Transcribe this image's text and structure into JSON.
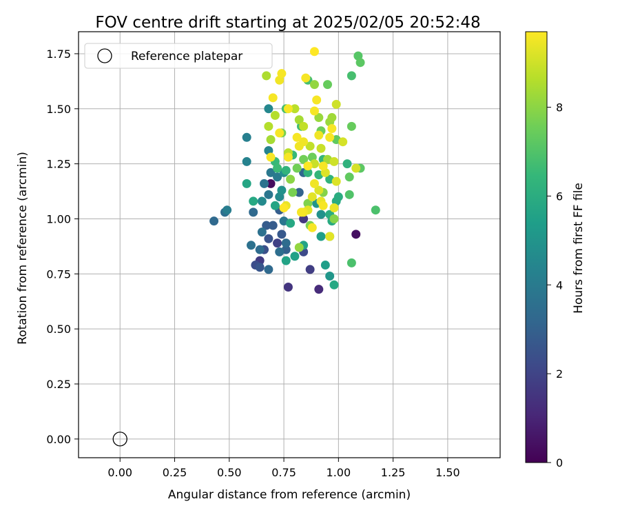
{
  "chart_data": {
    "type": "scatter",
    "title": "FOV centre drift starting at 2025/02/05 20:52:48",
    "xlabel": "Angular distance from reference (arcmin)",
    "ylabel": "Rotation from reference (arcmin)",
    "xlim": [
      -0.19,
      1.74
    ],
    "ylim": [
      -0.085,
      1.85
    ],
    "xticks": [
      0.0,
      0.25,
      0.5,
      0.75,
      1.0,
      1.25,
      1.5
    ],
    "xtick_labels": [
      "0.00",
      "0.25",
      "0.50",
      "0.75",
      "1.00",
      "1.25",
      "1.50"
    ],
    "yticks": [
      0.0,
      0.25,
      0.5,
      0.75,
      1.0,
      1.25,
      1.5,
      1.75
    ],
    "ytick_labels": [
      "0.00",
      "0.25",
      "0.50",
      "0.75",
      "1.00",
      "1.25",
      "1.50",
      "1.75"
    ],
    "grid": true,
    "legend": {
      "placement": "top-left",
      "entries": [
        "Reference platepar"
      ]
    },
    "reference_point": {
      "x": 0.0,
      "y": 0.0
    },
    "colorbar": {
      "label": "Hours from first FF file",
      "min": 0,
      "max": 9.7,
      "ticks": [
        0,
        2,
        4,
        6,
        8
      ],
      "tick_labels": [
        "0",
        "2",
        "4",
        "6",
        "8"
      ],
      "colormap": "viridis"
    },
    "colormap_stops": [
      "#440154",
      "#482878",
      "#3e4989",
      "#31688e",
      "#26828e",
      "#1f9e89",
      "#35b779",
      "#6ece58",
      "#b5de2b",
      "#fde725"
    ],
    "points": [
      [
        0.69,
        1.16,
        0.3
      ],
      [
        1.08,
        0.93,
        0.4
      ],
      [
        0.91,
        0.68,
        1.2
      ],
      [
        0.77,
        0.69,
        1.5
      ],
      [
        0.64,
        0.81,
        1.7
      ],
      [
        0.87,
        0.77,
        1.8
      ],
      [
        0.72,
        0.89,
        1.9
      ],
      [
        0.84,
        1.0,
        1.6
      ],
      [
        0.84,
        0.85,
        2.2
      ],
      [
        0.62,
        0.79,
        2.3
      ],
      [
        0.66,
        0.86,
        2.4
      ],
      [
        0.68,
        0.91,
        2.5
      ],
      [
        0.64,
        0.78,
        2.6
      ],
      [
        0.74,
        0.93,
        2.7
      ],
      [
        0.67,
        0.97,
        2.8
      ],
      [
        0.7,
        0.97,
        2.8
      ],
      [
        0.73,
        1.04,
        2.9
      ],
      [
        0.76,
        0.86,
        3.0
      ],
      [
        0.82,
        1.12,
        3.1
      ],
      [
        0.84,
        1.21,
        3.2
      ],
      [
        0.43,
        0.99,
        3.3
      ],
      [
        0.61,
        1.03,
        3.3
      ],
      [
        0.48,
        1.03,
        3.5
      ],
      [
        0.76,
        0.89,
        3.4
      ],
      [
        0.68,
        0.77,
        3.3
      ],
      [
        0.6,
        0.88,
        3.6
      ],
      [
        0.65,
        0.94,
        3.6
      ],
      [
        0.73,
        0.85,
        3.5
      ],
      [
        0.64,
        0.86,
        3.4
      ],
      [
        0.66,
        1.16,
        3.7
      ],
      [
        0.68,
        1.11,
        3.8
      ],
      [
        0.75,
        0.99,
        3.8
      ],
      [
        0.69,
        1.21,
        3.9
      ],
      [
        0.72,
        1.19,
        4.0
      ],
      [
        0.49,
        1.04,
        4.1
      ],
      [
        0.58,
        1.37,
        4.2
      ],
      [
        0.58,
        1.26,
        4.3
      ],
      [
        0.68,
        1.31,
        4.4
      ],
      [
        0.68,
        1.5,
        4.5
      ],
      [
        0.65,
        1.08,
        4.6
      ],
      [
        0.73,
        1.1,
        4.6
      ],
      [
        0.75,
        1.21,
        4.8
      ],
      [
        0.74,
        1.13,
        4.9
      ],
      [
        0.92,
        1.02,
        4.9
      ],
      [
        0.9,
        1.07,
        5.0
      ],
      [
        0.96,
        0.74,
        5.1
      ],
      [
        0.94,
        0.79,
        5.4
      ],
      [
        0.92,
        0.92,
        5.4
      ],
      [
        0.96,
        0.92,
        5.3
      ],
      [
        0.8,
        0.83,
        5.5
      ],
      [
        0.76,
        0.81,
        5.6
      ],
      [
        0.84,
        0.88,
        5.6
      ],
      [
        0.58,
        1.16,
        5.7
      ],
      [
        0.61,
        1.08,
        5.8
      ],
      [
        0.71,
        1.06,
        5.7
      ],
      [
        0.78,
        0.98,
        5.8
      ],
      [
        0.98,
        0.7,
        5.8
      ],
      [
        0.97,
        0.99,
        5.9
      ],
      [
        0.99,
        1.08,
        5.9
      ],
      [
        1.0,
        1.1,
        6.0
      ],
      [
        0.96,
        1.02,
        6.0
      ],
      [
        1.04,
        1.25,
        6.2
      ],
      [
        0.96,
        1.18,
        6.3
      ],
      [
        0.91,
        1.2,
        6.4
      ],
      [
        0.93,
        1.27,
        6.4
      ],
      [
        0.86,
        1.21,
        6.3
      ],
      [
        0.76,
        1.22,
        6.3
      ],
      [
        0.79,
        1.29,
        6.5
      ],
      [
        0.71,
        1.26,
        6.5
      ],
      [
        0.72,
        1.23,
        6.6
      ],
      [
        0.83,
        1.42,
        6.7
      ],
      [
        0.86,
        1.63,
        6.8
      ],
      [
        0.76,
        1.5,
        6.8
      ],
      [
        1.06,
        1.65,
        6.8
      ],
      [
        1.06,
        0.8,
        6.9
      ],
      [
        1.17,
        1.04,
        6.9
      ],
      [
        1.05,
        1.11,
        7.0
      ],
      [
        1.09,
        1.74,
        7.1
      ],
      [
        1.1,
        1.71,
        7.2
      ],
      [
        1.1,
        1.23,
        7.2
      ],
      [
        1.05,
        1.19,
        7.3
      ],
      [
        1.06,
        1.42,
        7.4
      ],
      [
        0.99,
        1.36,
        7.3
      ],
      [
        0.95,
        1.61,
        7.4
      ],
      [
        0.92,
        1.4,
        7.5
      ],
      [
        0.88,
        1.28,
        7.5
      ],
      [
        0.84,
        1.27,
        7.6
      ],
      [
        0.81,
        1.23,
        7.6
      ],
      [
        0.74,
        1.39,
        7.7
      ],
      [
        0.79,
        1.12,
        7.7
      ],
      [
        0.86,
        1.07,
        7.8
      ],
      [
        0.87,
        0.97,
        7.8
      ],
      [
        0.93,
        1.12,
        7.9
      ],
      [
        0.98,
        1.0,
        7.9
      ],
      [
        0.78,
        1.18,
        8.0
      ],
      [
        0.82,
        0.87,
        8.1
      ],
      [
        0.89,
        1.61,
        8.1
      ],
      [
        0.96,
        1.44,
        8.2
      ],
      [
        0.91,
        1.46,
        8.2
      ],
      [
        0.97,
        1.46,
        8.3
      ],
      [
        0.95,
        1.27,
        8.3
      ],
      [
        0.82,
        1.45,
        8.4
      ],
      [
        0.69,
        1.36,
        8.4
      ],
      [
        0.67,
        1.65,
        8.5
      ],
      [
        0.71,
        1.47,
        8.6
      ],
      [
        0.68,
        1.42,
        8.6
      ],
      [
        0.77,
        1.3,
        8.7
      ],
      [
        0.8,
        1.5,
        8.7
      ],
      [
        0.84,
        1.42,
        8.8
      ],
      [
        0.87,
        1.33,
        8.8
      ],
      [
        0.89,
        1.25,
        8.9
      ],
      [
        0.92,
        1.32,
        8.9
      ],
      [
        0.98,
        1.26,
        9.0
      ],
      [
        0.99,
        1.52,
        9.0
      ],
      [
        1.02,
        1.35,
        9.1
      ],
      [
        1.08,
        1.23,
        9.1
      ],
      [
        0.99,
        1.17,
        9.2
      ],
      [
        0.94,
        1.21,
        9.2
      ],
      [
        0.91,
        1.13,
        9.2
      ],
      [
        0.86,
        1.04,
        9.3
      ],
      [
        0.88,
        1.1,
        9.3
      ],
      [
        0.92,
        1.08,
        9.4
      ],
      [
        0.98,
        1.05,
        9.4
      ],
      [
        0.96,
        0.92,
        9.3
      ],
      [
        0.76,
        1.06,
        9.4
      ],
      [
        0.84,
        1.03,
        9.5
      ],
      [
        0.73,
        1.63,
        9.5
      ],
      [
        0.74,
        1.66,
        9.6
      ],
      [
        0.7,
        1.55,
        9.6
      ],
      [
        0.77,
        1.5,
        9.6
      ],
      [
        0.85,
        1.64,
        9.6
      ],
      [
        0.89,
        1.76,
        9.7
      ],
      [
        0.9,
        1.54,
        9.6
      ],
      [
        0.89,
        1.49,
        9.6
      ],
      [
        0.97,
        1.41,
        9.6
      ],
      [
        0.96,
        1.37,
        9.6
      ],
      [
        0.91,
        1.38,
        9.5
      ],
      [
        0.84,
        1.35,
        9.5
      ],
      [
        0.82,
        1.33,
        9.5
      ],
      [
        0.77,
        1.28,
        9.6
      ],
      [
        0.81,
        1.37,
        9.6
      ],
      [
        0.93,
        1.24,
        9.6
      ],
      [
        0.89,
        1.16,
        9.5
      ],
      [
        0.83,
        1.03,
        9.6
      ],
      [
        0.75,
        1.05,
        9.7
      ],
      [
        0.69,
        1.28,
        9.6
      ],
      [
        0.73,
        1.39,
        9.6
      ],
      [
        0.86,
        1.24,
        9.7
      ],
      [
        0.93,
        1.06,
        9.6
      ],
      [
        0.88,
        0.96,
        9.6
      ]
    ]
  }
}
